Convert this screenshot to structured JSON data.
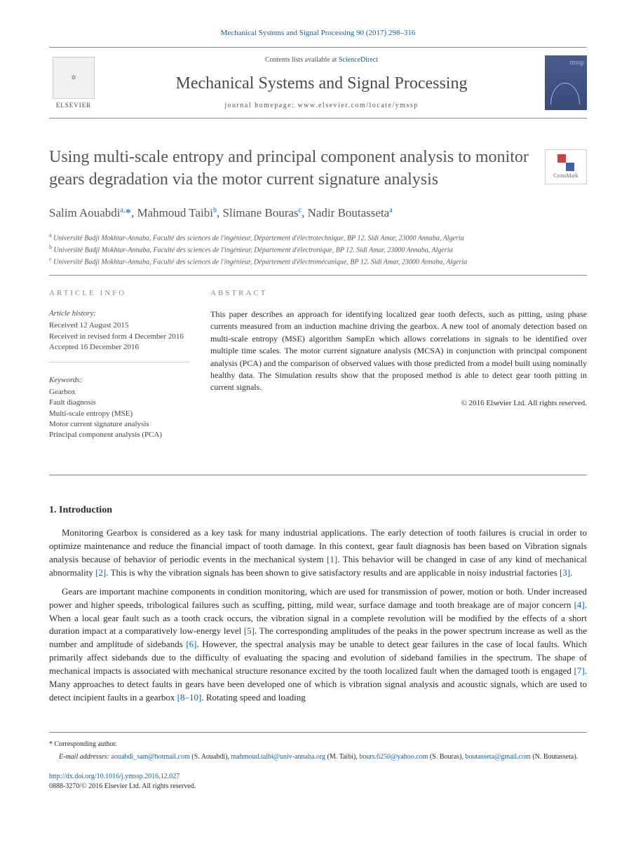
{
  "citation": "Mechanical Systems and Signal Processing 90 (2017) 298–316",
  "header": {
    "contents_prefix": "Contents lists available at ",
    "contents_link": "ScienceDirect",
    "journal_name": "Mechanical Systems and Signal Processing",
    "homepage": "journal homepage: www.elsevier.com/locate/ymssp",
    "publisher": "ELSEVIER",
    "cover_abbr": "mssp"
  },
  "crossmark_label": "CrossMark",
  "title": "Using multi-scale entropy and principal component analysis to monitor gears degradation via the motor current signature analysis",
  "authors_html": "Salim Aouabdi<span class='sup'>a,</span><span class='corr'>*</span>, Mahmoud Taibi<span class='sup'>b</span>, Slimane Bouras<span class='sup'>c</span>, Nadir Boutasseta<span class='sup'>a</span>",
  "affiliations": [
    {
      "sup": "a",
      "text": "Université Badji Mokhtar-Annaba, Faculté des sciences de l'ingénieur, Département d'électrotechnique, BP 12. Sidi Amar, 23000 Annaba, Algeria"
    },
    {
      "sup": "b",
      "text": "Université Badji Mokhtar-Annaba, Faculté des sciences de l'ingénieur, Département d'électronique, BP 12. Sidi Amar, 23000 Annaba, Algeria"
    },
    {
      "sup": "c",
      "text": "Université Badji Mokhtar-Annaba, Faculté des sciences de l'ingénieur, Département d'électromécanique, BP 12. Sidi Amar, 23000 Annaba, Algeria"
    }
  ],
  "info": {
    "heading": "ARTICLE INFO",
    "history_label": "Article history:",
    "history": [
      "Received 12 August 2015",
      "Received in revised form 4 December 2016",
      "Accepted 16 December 2016"
    ],
    "keywords_label": "Keywords:",
    "keywords": [
      "Gearbox",
      "Fault diagnosis",
      "Multi-scale entropy (MSE)",
      "Motor current signature analysis",
      "Principal component analysis (PCA)"
    ]
  },
  "abstract": {
    "heading": "ABSTRACT",
    "text": "This paper describes an approach for identifying localized gear tooth defects, such as pitting, using phase currents measured from an induction machine driving the gearbox. A new tool of anomaly detection based on multi-scale entropy (MSE) algorithm SampEn which allows correlations in signals to be identified over multiple time scales. The motor current signature analysis (MCSA) in conjunction with principal component analysis (PCA) and the comparison of observed values with those predicted from a model built using nominally healthy data. The Simulation results show that the proposed method is able to detect gear tooth pitting in current signals.",
    "copyright": "© 2016 Elsevier Ltd. All rights reserved."
  },
  "sections": [
    {
      "heading": "1. Introduction",
      "paragraphs": [
        "Monitoring Gearbox is considered as a key task for many industrial applications. The early detection of tooth failures is crucial in order to optimize maintenance and reduce the financial impact of tooth damage. In this context, gear fault diagnosis has been based on Vibration signals analysis because of behavior of periodic events in the mechanical system <span class='ref'>[1]</span>. This behavior will be changed in case of any kind of mechanical abnormality <span class='ref'>[2]</span>. This is why the vibration signals has been shown to give satisfactory results and are applicable in noisy industrial factories <span class='ref'>[3]</span>.",
        "Gears are important machine components in condition monitoring, which are used for transmission of power, motion or both. Under increased power and higher speeds, tribological failures such as scuffing, pitting, mild wear, surface damage and tooth breakage are of major concern <span class='ref'>[4]</span>. When a local gear fault such as a tooth crack occurs, the vibration signal in a complete revolution will be modified by the effects of a short duration impact at a comparatively low-energy level <span class='ref'>[5]</span>. The corresponding amplitudes of the peaks in the power spectrum increase as well as the number and amplitude of sidebands <span class='ref'>[6]</span>. However, the spectral analysis may be unable to detect gear failures in the case of local faults. Which primarily affect sidebands due to the difficulty of evaluating the spacing and evolution of sideband families in the spectrum. The shape of mechanical impacts is associated with mechanical structure resonance excited by the tooth localized fault when the damaged tooth is engaged <span class='ref'>[7]</span>. Many approaches to detect faults in gears have been developed one of which is vibration signal analysis and acoustic signals, which are used to detect incipient faults in a gearbox <span class='ref'>[8–10]</span>. Rotating speed and loading"
      ]
    }
  ],
  "footer": {
    "corr_label": "* Corresponding author.",
    "email_label": "E-mail addresses:",
    "emails": [
      {
        "addr": "aouabdi_sam@hotmail.com",
        "name": "(S. Aouabdi)"
      },
      {
        "addr": "mahmoud.taibi@univ-annaba.org",
        "name": "(M. Taibi)"
      },
      {
        "addr": "bours.6250@yahoo.com",
        "name": "(S. Bouras)"
      },
      {
        "addr": "boutasseta@gmail.com",
        "name": "(N. Boutasseta)"
      }
    ],
    "doi": "http://dx.doi.org/10.1016/j.ymssp.2016.12.027",
    "issn_line": "0888-3270/© 2016 Elsevier Ltd. All rights reserved."
  },
  "colors": {
    "link": "#0066aa",
    "heading_gray": "#555555",
    "border": "#888888",
    "cover_bg": "#4a5a8a"
  }
}
